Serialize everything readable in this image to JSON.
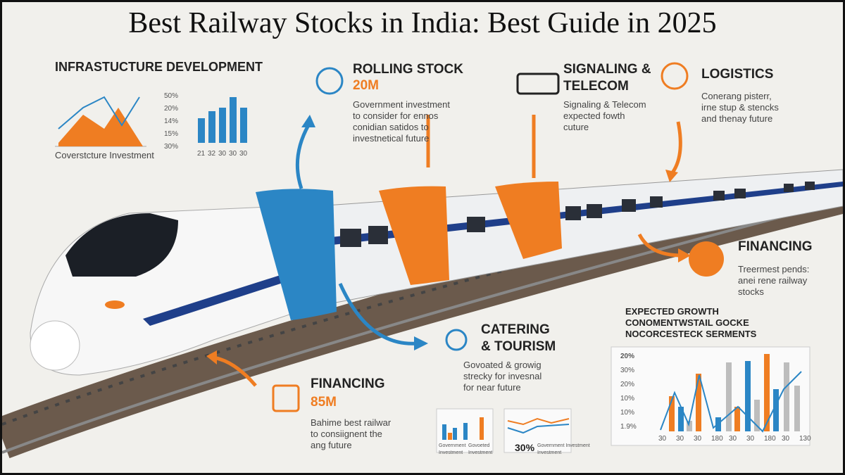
{
  "title": "Best Railway Stocks in India: Best Guide in 2025",
  "infrastructure": {
    "heading": "INFRASTUCTURE DEVELOPMENT",
    "caption": "Coverstcture Investment",
    "ticks": [
      "50%",
      "20%",
      "14%",
      "15%",
      "30%"
    ],
    "x_labels": [
      "21",
      "32",
      "30",
      "30",
      "30"
    ]
  },
  "rolling_stock": {
    "heading": "ROLLING STOCK",
    "figure": "20M",
    "text": [
      "Government investment",
      "to consider for ennos",
      "conidian satidos to",
      "investnetical future"
    ]
  },
  "signaling": {
    "heading": [
      "SIGNALING &",
      "TELECOM"
    ],
    "text": [
      "Signaling & Telecom",
      "expected fowth",
      "cuture"
    ]
  },
  "logistics": {
    "heading": "LOGISTICS",
    "text": [
      "Conerang pisterr,",
      "irne stup & stencks",
      "and thenay future"
    ]
  },
  "financing_right": {
    "heading": "FINANCING",
    "text": [
      "Treermest pends:",
      "anei rene railway",
      "stocks"
    ]
  },
  "catering": {
    "heading": [
      "CATERING",
      "& TOURISM"
    ],
    "text": [
      "Govoated & growig",
      "strecky for invesnal",
      "for near future"
    ]
  },
  "financing_left": {
    "heading": "FINANCING",
    "figure": "85M",
    "text": [
      "Bahime best railwar",
      "to consiignent the",
      "ang future"
    ]
  },
  "mini_charts": {
    "left_caption": [
      "Government",
      "Investment",
      "Govoeted",
      "Investment"
    ],
    "right_figure": "30%",
    "right_caption": [
      "Government Investment",
      "Investment"
    ]
  },
  "growth": {
    "heading": [
      "EXPECTED GROWTH",
      "CONOMENTWSTAIL GOCKE",
      "NOCORCESTECK SERMENTS"
    ],
    "ticks": [
      "20%",
      "30%",
      "20%",
      "10%",
      "10%",
      "1.9%"
    ],
    "x_labels": [
      "30",
      "30",
      "30",
      "180",
      "30",
      "30",
      "180",
      "30",
      "130"
    ]
  }
}
